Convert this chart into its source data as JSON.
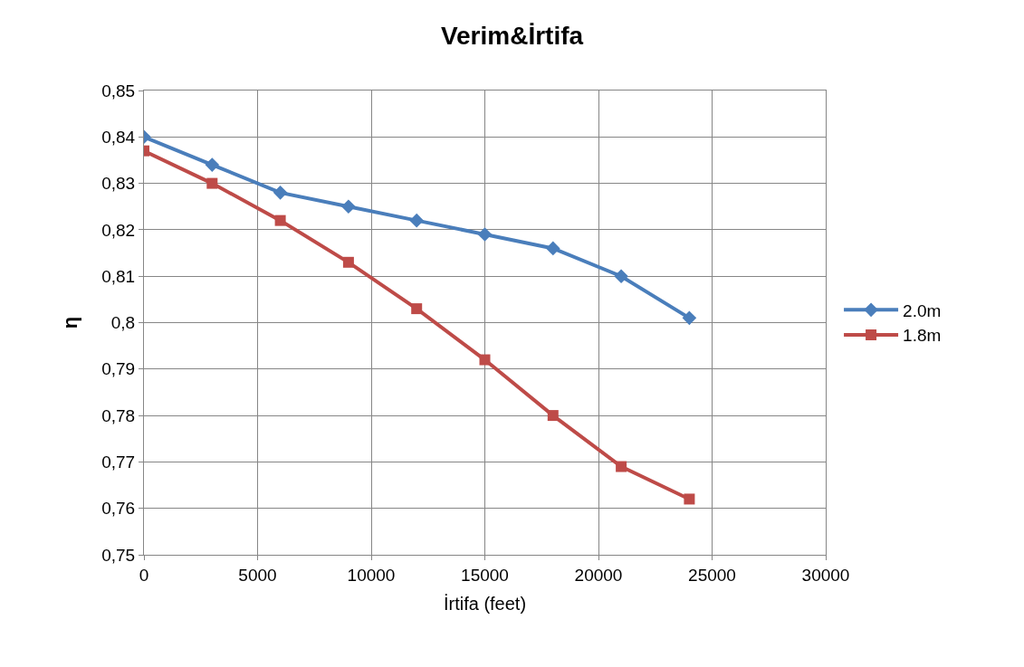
{
  "chart_data": {
    "type": "line",
    "title": "Verim&İrtifa",
    "xlabel": "İrtifa (feet)",
    "ylabel": "η",
    "x": [
      0,
      3000,
      6000,
      9000,
      12000,
      15000,
      18000,
      21000,
      24000
    ],
    "series": [
      {
        "name": "2.0m",
        "color": "#4a7ebb",
        "marker": "diamond",
        "values": [
          0.84,
          0.834,
          0.828,
          0.825,
          0.822,
          0.819,
          0.816,
          0.81,
          0.801
        ]
      },
      {
        "name": "1.8m",
        "color": "#be4b48",
        "marker": "square",
        "values": [
          0.837,
          0.83,
          0.822,
          0.813,
          0.803,
          0.792,
          0.78,
          0.769,
          0.762
        ]
      }
    ],
    "xlim": [
      0,
      30000
    ],
    "xticks": [
      0,
      5000,
      10000,
      15000,
      20000,
      25000,
      30000
    ],
    "ylim": [
      0.75,
      0.85
    ],
    "yticks": [
      {
        "value": 0.75,
        "label": "0,75"
      },
      {
        "value": 0.76,
        "label": "0,76"
      },
      {
        "value": 0.77,
        "label": "0,77"
      },
      {
        "value": 0.78,
        "label": "0,78"
      },
      {
        "value": 0.79,
        "label": "0,79"
      },
      {
        "value": 0.8,
        "label": "0,8"
      },
      {
        "value": 0.81,
        "label": "0,81"
      },
      {
        "value": 0.82,
        "label": "0,82"
      },
      {
        "value": 0.83,
        "label": "0,83"
      },
      {
        "value": 0.84,
        "label": "0,84"
      },
      {
        "value": 0.85,
        "label": "0,85"
      }
    ],
    "grid": true,
    "legend": "right",
    "line_style": "solid"
  }
}
